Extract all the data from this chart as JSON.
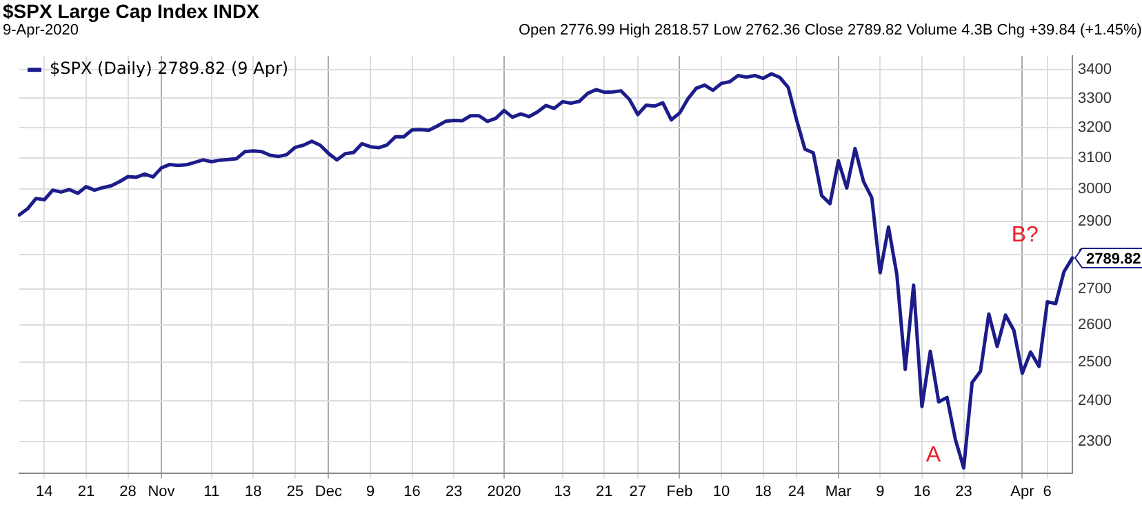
{
  "chart_data": {
    "type": "line",
    "title": "$SPX Large Cap Index INDX",
    "subtitle": "9-Apr-2020",
    "annotations": [
      "Open 2776.99 High 2818.57 Low 2762.36 Close 2789.82 Volume 4.3B Chg +39.84 (+1.45%)",
      "A",
      "B?"
    ],
    "categories": [
      null,
      null,
      null,
      "14",
      null,
      null,
      null,
      null,
      "21",
      null,
      null,
      null,
      null,
      "28",
      null,
      null,
      null,
      "Nov",
      null,
      null,
      null,
      null,
      null,
      "11",
      null,
      null,
      null,
      null,
      "18",
      null,
      null,
      null,
      null,
      "25",
      null,
      null,
      null,
      "Dec",
      null,
      null,
      null,
      null,
      "9",
      null,
      null,
      null,
      null,
      "16",
      null,
      null,
      null,
      null,
      "23",
      null,
      null,
      null,
      null,
      null,
      "2020",
      null,
      null,
      null,
      null,
      null,
      null,
      "13",
      null,
      null,
      null,
      null,
      "21",
      null,
      null,
      null,
      "27",
      null,
      null,
      null,
      null,
      "Feb",
      null,
      null,
      null,
      null,
      "10",
      null,
      null,
      null,
      null,
      "18",
      null,
      null,
      null,
      "24",
      null,
      null,
      null,
      null,
      "Mar",
      null,
      null,
      null,
      null,
      "9",
      null,
      null,
      null,
      null,
      "16",
      null,
      null,
      null,
      null,
      "23",
      null,
      null,
      null,
      null,
      null,
      null,
      "Apr",
      null,
      null,
      "6",
      null,
      null,
      null
    ],
    "series": [
      {
        "name": "$SPX (Daily) 2789.82 (9 Apr)",
        "color": "#1c1c8a",
        "values": [
          2919,
          2938,
          2970,
          2966,
          2996,
          2990,
          2998,
          2986,
          3007,
          2996,
          3004,
          3010,
          3023,
          3039,
          3037,
          3047,
          3038,
          3067,
          3078,
          3075,
          3077,
          3085,
          3093,
          3087,
          3092,
          3094,
          3097,
          3120,
          3122,
          3120,
          3108,
          3104,
          3110,
          3134,
          3141,
          3154,
          3141,
          3114,
          3093,
          3113,
          3117,
          3146,
          3136,
          3133,
          3142,
          3169,
          3169,
          3192,
          3193,
          3191,
          3205,
          3221,
          3224,
          3223,
          3240,
          3240,
          3221,
          3231,
          3258,
          3235,
          3246,
          3237,
          3253,
          3275,
          3265,
          3288,
          3283,
          3289,
          3317,
          3330,
          3321,
          3322,
          3326,
          3296,
          3244,
          3276,
          3273,
          3284,
          3226,
          3249,
          3298,
          3335,
          3346,
          3328,
          3352,
          3358,
          3380,
          3374,
          3380,
          3370,
          3386,
          3373,
          3338,
          3226,
          3128,
          3116,
          2979,
          2954,
          3090,
          3003,
          3130,
          3024,
          2972,
          2747,
          2882,
          2741,
          2481,
          2711,
          2386,
          2529,
          2398,
          2409,
          2305,
          2237,
          2447,
          2476,
          2630,
          2542,
          2627,
          2585,
          2471,
          2527,
          2489,
          2664,
          2659,
          2750,
          2789.82
        ],
        "value_labels": [
          null,
          null,
          null,
          null,
          null,
          null,
          null,
          null,
          null,
          null,
          null,
          null,
          null,
          null,
          null,
          null,
          null,
          null,
          null,
          null,
          null,
          null,
          null,
          null,
          null,
          null,
          null,
          null,
          null,
          null,
          null,
          null,
          null,
          null,
          null,
          null,
          null,
          null,
          null,
          null,
          null,
          null,
          null,
          null,
          null,
          null,
          null,
          null,
          null,
          null,
          null,
          null,
          null,
          null,
          null,
          null,
          null,
          null,
          null,
          null,
          null,
          null,
          null,
          null,
          null,
          null,
          null,
          null,
          null,
          null,
          null,
          null,
          null,
          null,
          null,
          null,
          null,
          null,
          null,
          null,
          null,
          null,
          null,
          null,
          null,
          null,
          null,
          null,
          null,
          null,
          null,
          null,
          null,
          null,
          null,
          null,
          null,
          null,
          null,
          null,
          null,
          null,
          null,
          null,
          null,
          null,
          null,
          null,
          null,
          null,
          null,
          null,
          null,
          null,
          null,
          null,
          null,
          null,
          null,
          null,
          null,
          null,
          null,
          null,
          null,
          null,
          "2789.82"
        ]
      }
    ],
    "log": "y",
    "ylim": [
      2225,
      3450
    ],
    "yticks": [
      2300,
      2400,
      2500,
      2600,
      2700,
      2800,
      2900,
      3000,
      3100,
      3200,
      3300,
      3400
    ],
    "grid": true,
    "legend": "top left",
    "line_style": "solid",
    "marker": "none"
  }
}
